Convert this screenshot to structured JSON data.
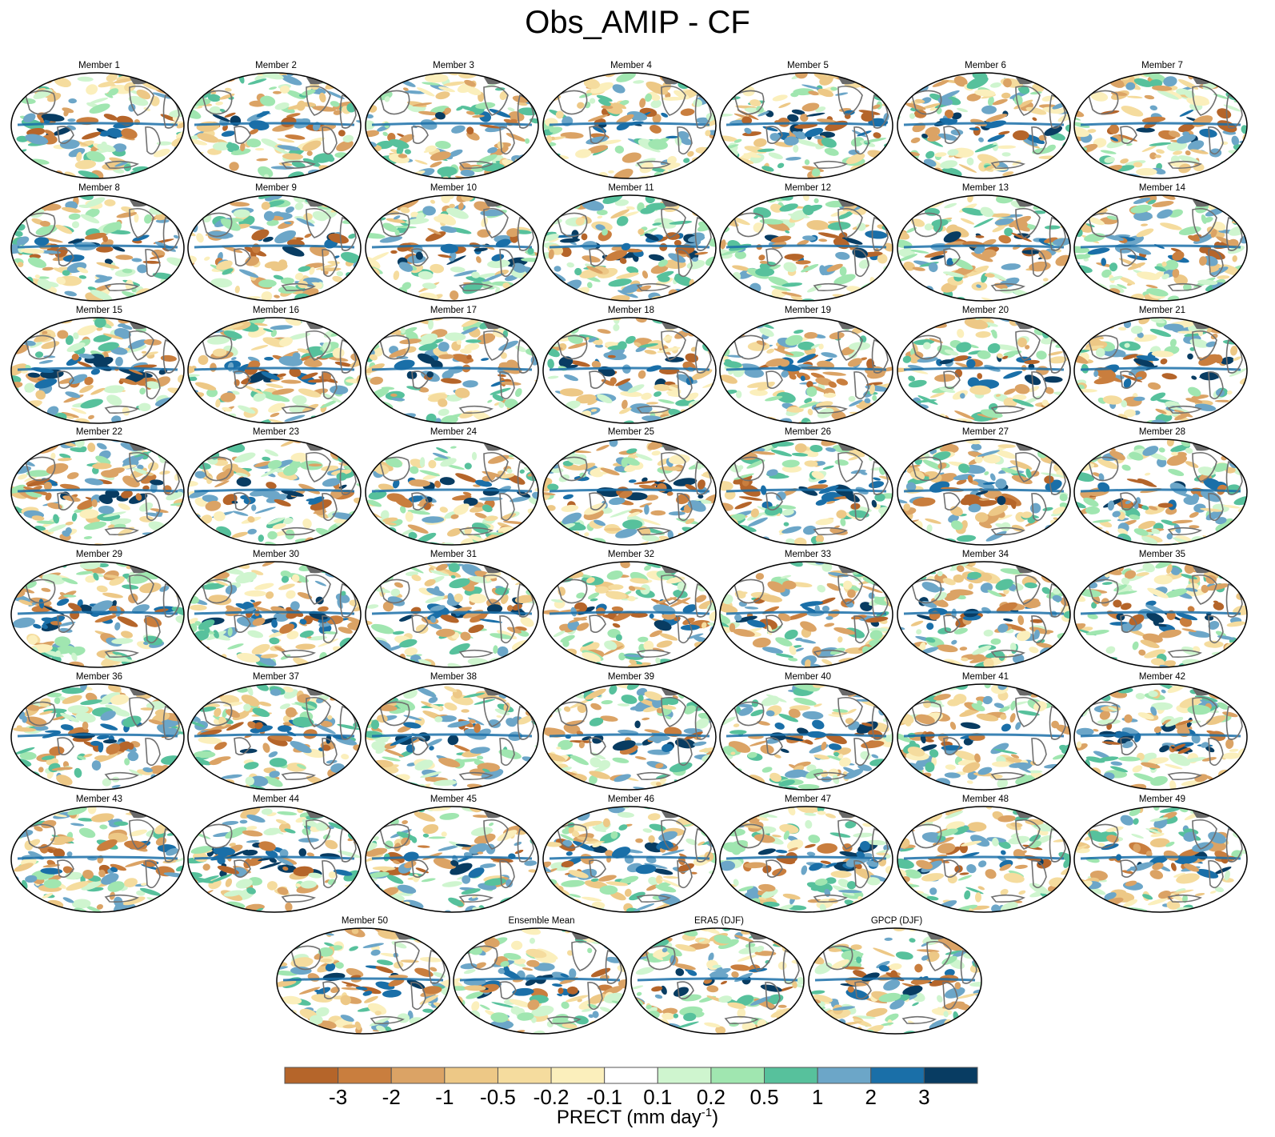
{
  "title": "Obs_AMIP - CF",
  "panels": [
    "Member 1",
    "Member 2",
    "Member 3",
    "Member 4",
    "Member 5",
    "Member 6",
    "Member 7",
    "Member 8",
    "Member 9",
    "Member 10",
    "Member 11",
    "Member 12",
    "Member 13",
    "Member 14",
    "Member 15",
    "Member 16",
    "Member 17",
    "Member 18",
    "Member 19",
    "Member 20",
    "Member 21",
    "Member 22",
    "Member 23",
    "Member 24",
    "Member 25",
    "Member 26",
    "Member 27",
    "Member 28",
    "Member 29",
    "Member 30",
    "Member 31",
    "Member 32",
    "Member 33",
    "Member 34",
    "Member 35",
    "Member 36",
    "Member 37",
    "Member 38",
    "Member 39",
    "Member 40",
    "Member 41",
    "Member 42",
    "Member 43",
    "Member 44",
    "Member 45",
    "Member 46",
    "Member 47",
    "Member 48",
    "Member 49",
    "Member 50",
    "Ensemble Mean",
    "ERA5 (DJF)",
    "GPCP (DJF)"
  ],
  "colorbar": {
    "title_main": "PRECT (mm day",
    "title_sup": "-1",
    "title_end": ")",
    "tick_labels": [
      "-3",
      "-2",
      "-1",
      "-0.5",
      "-0.2",
      "-0.1",
      "0.1",
      "0.2",
      "0.5",
      "1",
      "2",
      "3"
    ],
    "colors": [
      "#b5652a",
      "#c97e3e",
      "#dba365",
      "#edc886",
      "#f5dc9e",
      "#fbefbc",
      "#ffffff",
      "#cff5cf",
      "#a0e6b0",
      "#57c19c",
      "#6ca6c8",
      "#1a6fa8",
      "#083c62"
    ]
  },
  "map_colors": {
    "land_contour": "#707070",
    "ice": "#6a6a6a",
    "frame": "#000000"
  }
}
